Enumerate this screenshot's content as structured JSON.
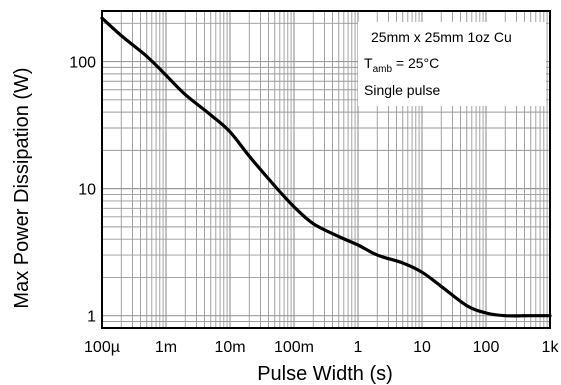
{
  "chart_data": {
    "type": "line",
    "title": "",
    "xlabel": "Pulse Width (s)",
    "ylabel": "Max Power Dissipation (W)",
    "x_scale": "log",
    "y_scale": "log",
    "xlim": [
      0.0001,
      1000
    ],
    "ylim": [
      0.8,
      250
    ],
    "x_ticks": [
      {
        "value": 0.0001,
        "label": "100µ"
      },
      {
        "value": 0.001,
        "label": "1m"
      },
      {
        "value": 0.01,
        "label": "10m"
      },
      {
        "value": 0.1,
        "label": "100m"
      },
      {
        "value": 1,
        "label": "1"
      },
      {
        "value": 10,
        "label": "10"
      },
      {
        "value": 100,
        "label": "100"
      },
      {
        "value": 1000,
        "label": "1k"
      }
    ],
    "y_ticks": [
      {
        "value": 1,
        "label": "1"
      },
      {
        "value": 10,
        "label": "10"
      },
      {
        "value": 100,
        "label": "100"
      }
    ],
    "grid": true,
    "annotation": {
      "line1": "25mm x 25mm 1oz Cu",
      "line2_main": "T",
      "line2_sub": "amb",
      "line2_rest": " = 25°C",
      "line3": "Single pulse"
    },
    "series": [
      {
        "x": [
          0.0001,
          0.0002,
          0.0005,
          0.001,
          0.002,
          0.005,
          0.01,
          0.02,
          0.05,
          0.1,
          0.2,
          0.5,
          1,
          2,
          5,
          10,
          20,
          50,
          100,
          200,
          500,
          1000
        ],
        "y": [
          220,
          160,
          110,
          78,
          55,
          38,
          28,
          18,
          10.5,
          7.2,
          5.3,
          4.2,
          3.6,
          3.0,
          2.6,
          2.2,
          1.7,
          1.2,
          1.05,
          1.0,
          1.0,
          1.0
        ]
      }
    ],
    "colors": {
      "line": "#000000",
      "grid": "#999999",
      "frame": "#000000"
    }
  }
}
